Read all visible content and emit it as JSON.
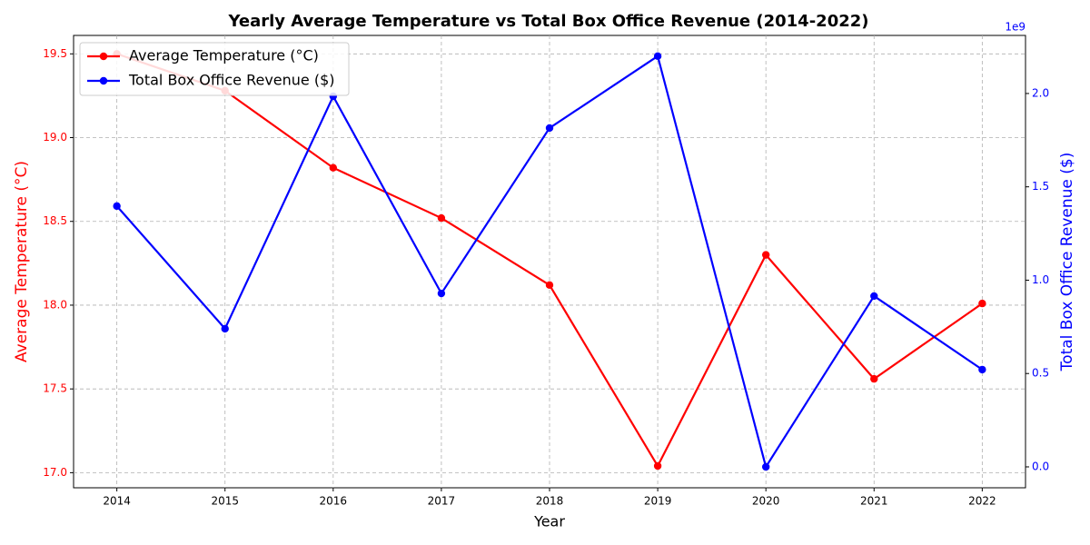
{
  "chart_data": {
    "type": "line",
    "title": "Yearly Average Temperature vs Total Box Office Revenue (2014-2022)",
    "xlabel": "Year",
    "ylabel": "Average Temperature (°C)",
    "y2label": "Total Box Office Revenue ($)",
    "y2_offset_label": "1e9",
    "x": [
      2014,
      2015,
      2016,
      2017,
      2018,
      2019,
      2020,
      2021,
      2022
    ],
    "xlim": [
      2013.6,
      2022.4
    ],
    "xticks": [
      2014,
      2015,
      2016,
      2017,
      2018,
      2019,
      2020,
      2021,
      2022
    ],
    "ylim": [
      16.91,
      19.61
    ],
    "yticks": [
      {
        "value": 17.0,
        "label": "17.0"
      },
      17.5,
      {
        "value": 18.0,
        "label": "18.0"
      },
      18.5,
      {
        "value": 19.0,
        "label": "19.0"
      },
      19.5
    ],
    "y2lim": [
      -112000000,
      2311000000
    ],
    "y2ticks": [
      {
        "value": 0,
        "label": "0.0"
      },
      {
        "value": 500000000,
        "label": "0.5"
      },
      {
        "value": 1000000000,
        "label": "1.0"
      },
      {
        "value": 1500000000,
        "label": "1.5"
      },
      {
        "value": 2000000000,
        "label": "2.0"
      }
    ],
    "grid": true,
    "legend": "upper left",
    "series": [
      {
        "name": "Average Temperature (°C)",
        "color": "#ff0000",
        "values": [
          19.5,
          19.28,
          18.82,
          18.52,
          18.12,
          17.04,
          18.3,
          17.56,
          18.01
        ]
      },
      {
        "name": "Total Box Office Revenue ($)",
        "color": "#0000ff",
        "axis": "y2",
        "values": [
          1397000000,
          740000000,
          1985000000,
          929000000,
          1815000000,
          2200000000,
          0,
          915000000,
          521000000
        ]
      }
    ]
  }
}
